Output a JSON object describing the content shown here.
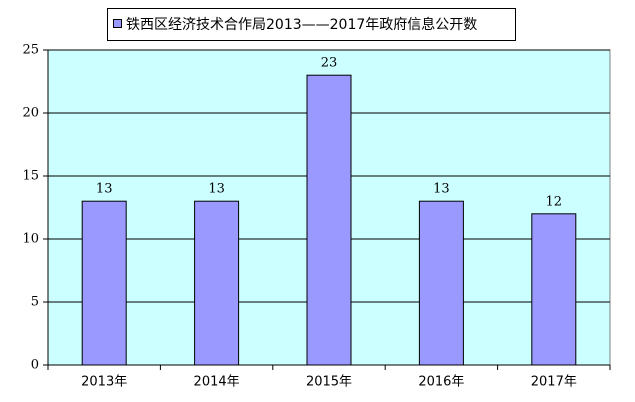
{
  "chart_data": {
    "type": "bar",
    "categories": [
      "2013年",
      "2014年",
      "2015年",
      "2016年",
      "2017年"
    ],
    "series": [
      {
        "name": "铁西区经济技术合作局2013——2017年政府信息公开数",
        "color": "#9999ff",
        "values": [
          13,
          13,
          23,
          13,
          12
        ]
      }
    ],
    "ylim": [
      0,
      25
    ],
    "yticks": [
      0,
      5,
      10,
      15,
      20,
      25
    ],
    "grid": true,
    "legend": "top",
    "data_labels": true,
    "plot_background": "#ccffff"
  }
}
